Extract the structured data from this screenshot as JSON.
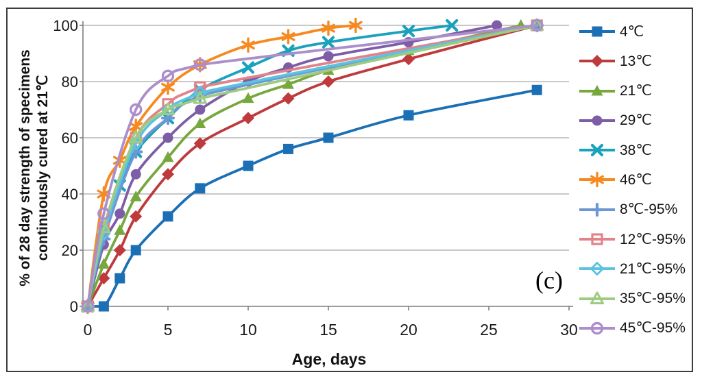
{
  "chart_data": {
    "type": "line",
    "title": "",
    "xlabel": "Age, days",
    "ylabel": "% of 28 day strength of specimens continuously cured at 21℃",
    "ylabel_lines": [
      "% of 28 day strength of specimens",
      "continuously cured at 21℃"
    ],
    "annotations": [
      "(c)"
    ],
    "xlim": [
      0,
      30
    ],
    "ylim": [
      0,
      100
    ],
    "x_ticks": [
      0,
      5,
      10,
      15,
      20,
      25,
      30
    ],
    "y_ticks": [
      0,
      20,
      40,
      60,
      80,
      100
    ],
    "grid": "horizontal",
    "legend_position": "right",
    "axis_color": "#7f7f7f",
    "grid_color": "#a6a6a6",
    "tick_label_color": "#1a1a1a",
    "frame_color": "#3c3c3c",
    "series": [
      {
        "name": "4℃",
        "marker": "square",
        "color": "#1B6FB5",
        "x": [
          0,
          1,
          2,
          3,
          5,
          7,
          10,
          12.5,
          15,
          20,
          28
        ],
        "y": [
          0,
          0,
          10,
          20,
          32,
          42,
          50,
          56,
          60,
          68,
          77
        ]
      },
      {
        "name": "13℃",
        "marker": "diamond",
        "color": "#BE3A3C",
        "x": [
          0,
          1,
          2,
          3,
          5,
          7,
          10,
          12.5,
          15,
          20,
          28
        ],
        "y": [
          0,
          10,
          20,
          32,
          47,
          58,
          67,
          74,
          80,
          88,
          100
        ]
      },
      {
        "name": "21℃",
        "marker": "triangle",
        "color": "#76A83E",
        "x": [
          0,
          1,
          2,
          3,
          5,
          7,
          10,
          12.5,
          15,
          20,
          27
        ],
        "y": [
          0,
          15,
          27,
          39,
          53,
          65,
          74,
          79,
          84,
          91,
          100
        ]
      },
      {
        "name": "29℃",
        "marker": "circle",
        "color": "#7C5DA6",
        "x": [
          0,
          1,
          2,
          3,
          5,
          7,
          10,
          12.5,
          15,
          20,
          25.5
        ],
        "y": [
          0,
          22,
          33,
          47,
          60,
          70,
          80,
          85,
          89,
          94,
          100
        ]
      },
      {
        "name": "38℃",
        "marker": "x",
        "color": "#1AA2BC",
        "x": [
          0,
          1,
          2,
          3,
          5,
          7,
          10,
          12.5,
          15,
          20,
          22.7
        ],
        "y": [
          0,
          28,
          43,
          55,
          67,
          77,
          85,
          91,
          94,
          98,
          100
        ]
      },
      {
        "name": "46℃",
        "marker": "asterisk",
        "color": "#F68A20",
        "x": [
          0,
          1,
          2,
          3,
          5,
          7,
          10,
          12.5,
          15,
          16.7
        ],
        "y": [
          0,
          40,
          52,
          64,
          78,
          86,
          93,
          96,
          99,
          100
        ]
      },
      {
        "name": "8℃-95%",
        "marker": "plus",
        "color": "#6D97D4",
        "x": [
          0,
          1,
          3,
          5,
          7,
          28
        ],
        "y": [
          0,
          24,
          55,
          67,
          75,
          100
        ]
      },
      {
        "name": "12℃-95%",
        "marker": "square-open",
        "color": "#E28289",
        "x": [
          0,
          1,
          3,
          5,
          7,
          28
        ],
        "y": [
          0,
          28,
          60,
          72,
          78,
          100
        ]
      },
      {
        "name": "21℃-95%",
        "marker": "diamond-open",
        "color": "#5BC3E0",
        "x": [
          0,
          1,
          3,
          5,
          7,
          28
        ],
        "y": [
          0,
          26,
          58,
          70,
          76,
          100
        ]
      },
      {
        "name": "35℃-95%",
        "marker": "triangle-open",
        "color": "#9ECB81",
        "x": [
          0,
          1,
          3,
          5,
          7,
          28
        ],
        "y": [
          0,
          28,
          60,
          70,
          74,
          100
        ]
      },
      {
        "name": "45℃-95%",
        "marker": "circle-open",
        "color": "#AC8ECB",
        "x": [
          0,
          1,
          3,
          5,
          7,
          28
        ],
        "y": [
          0,
          33,
          70,
          82,
          86,
          100
        ]
      }
    ]
  }
}
